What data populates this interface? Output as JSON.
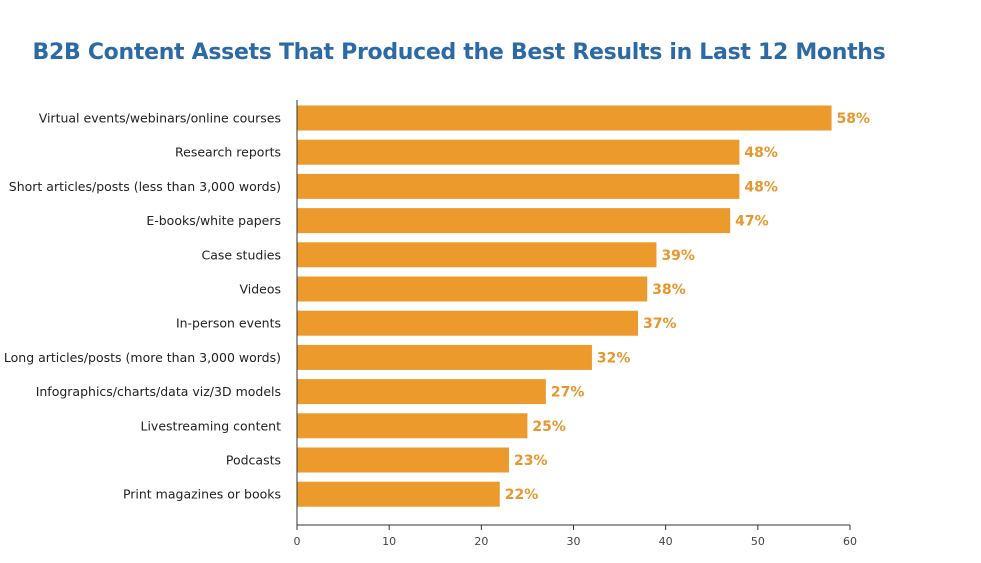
{
  "colors": {
    "title": "#2c6aa6",
    "bar": "#ec9a2b",
    "value_label": "#e8962e",
    "axis": "#333333"
  },
  "chart_data": {
    "type": "bar",
    "orientation": "horizontal",
    "title": "B2B Content Assets That Produced the Best Results in Last 12 Months",
    "categories": [
      "Virtual events/webinars/online courses",
      "Research reports",
      "Short articles/posts (less than 3,000 words)",
      "E-books/white papers",
      "Case studies",
      "Videos",
      "In-person events",
      "Long articles/posts (more than 3,000 words)",
      "Infographics/charts/data viz/3D models",
      "Livestreaming content",
      "Podcasts",
      "Print magazines or books"
    ],
    "values": [
      58,
      48,
      48,
      47,
      39,
      38,
      37,
      32,
      27,
      25,
      23,
      22
    ],
    "value_labels": [
      "58%",
      "48%",
      "48%",
      "47%",
      "39%",
      "38%",
      "37%",
      "32%",
      "27%",
      "25%",
      "23%",
      "22%"
    ],
    "xlim": [
      0,
      60
    ],
    "xticks": [
      0,
      10,
      20,
      30,
      40,
      50,
      60
    ],
    "grid": false,
    "legend": "none"
  }
}
